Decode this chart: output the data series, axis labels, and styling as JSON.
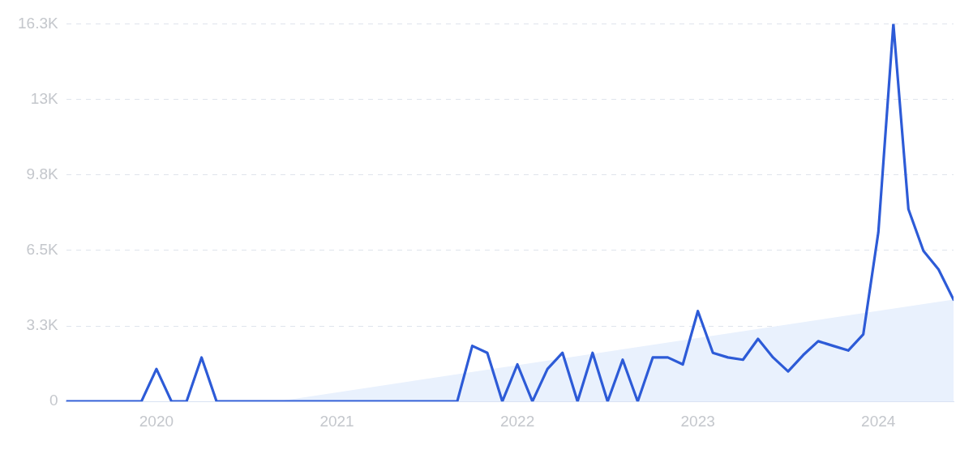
{
  "chart_data": {
    "type": "line",
    "x": [
      "2019-07",
      "2019-08",
      "2019-09",
      "2019-10",
      "2019-11",
      "2019-12",
      "2020-01",
      "2020-02",
      "2020-03",
      "2020-04",
      "2020-05",
      "2020-06",
      "2020-07",
      "2020-08",
      "2020-09",
      "2020-10",
      "2020-11",
      "2020-12",
      "2021-01",
      "2021-02",
      "2021-03",
      "2021-04",
      "2021-05",
      "2021-06",
      "2021-07",
      "2021-08",
      "2021-09",
      "2021-10",
      "2021-11",
      "2021-12",
      "2022-01",
      "2022-02",
      "2022-03",
      "2022-04",
      "2022-05",
      "2022-06",
      "2022-07",
      "2022-08",
      "2022-09",
      "2022-10",
      "2022-11",
      "2022-12",
      "2023-01",
      "2023-02",
      "2023-03",
      "2023-04",
      "2023-05",
      "2023-06",
      "2023-07",
      "2023-08",
      "2023-09",
      "2023-10",
      "2023-11",
      "2023-12",
      "2024-01",
      "2024-02",
      "2024-03",
      "2024-04",
      "2024-05",
      "2024-06"
    ],
    "series": [
      {
        "type": "area",
        "x": [
          "2020-09",
          "2024-06"
        ],
        "color": "#e9f1fd",
        "values": [
          0,
          4400
        ]
      },
      {
        "color": "#2d5bd7",
        "values": [
          0,
          0,
          0,
          0,
          0,
          0,
          1400,
          0,
          0,
          1900,
          0,
          0,
          0,
          0,
          0,
          0,
          0,
          0,
          0,
          0,
          0,
          0,
          0,
          0,
          0,
          0,
          0,
          2400,
          2100,
          0,
          1600,
          0,
          1400,
          2100,
          0,
          2100,
          0,
          1800,
          0,
          1900,
          1900,
          1600,
          3900,
          2100,
          1900,
          1800,
          2700,
          1900,
          1300,
          2000,
          2600,
          2400,
          2200,
          2900,
          7300,
          16300,
          8300,
          6500,
          5700,
          4400
        ]
      }
    ],
    "xlim": [
      "2019-07",
      "2024-06"
    ],
    "xticks": [
      "2020",
      "2021",
      "2022",
      "2023",
      "2024"
    ],
    "ylim": [
      0,
      16300
    ],
    "yticks": [
      0,
      {
        "value": 3260,
        "label": "3.3K"
      },
      {
        "value": 6520,
        "label": "6.5K"
      },
      {
        "value": 9780,
        "label": "9.8K"
      },
      {
        "value": 13040,
        "label": "13K"
      },
      {
        "value": 16300,
        "label": "16.3K"
      }
    ],
    "grid": "y",
    "legend": false,
    "marker": "none",
    "line_style": "solid"
  }
}
